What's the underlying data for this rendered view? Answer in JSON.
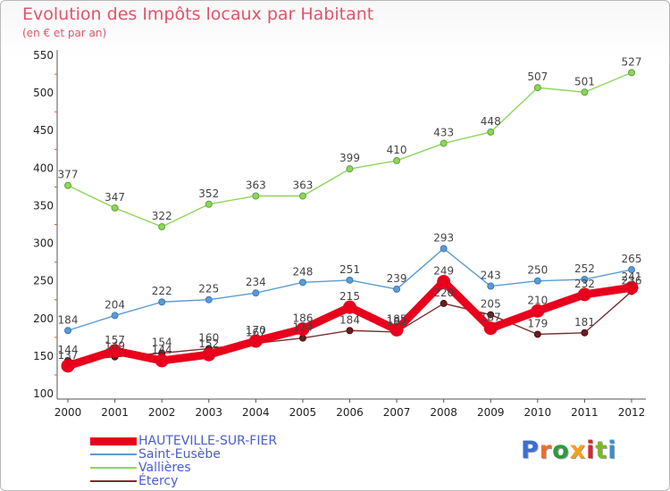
{
  "header": {
    "title": "Evolution des Impôts locaux par Habitant",
    "subtitle": "(en € et par an)"
  },
  "logo": {
    "text": "Proxiti",
    "letter_colors": [
      "#3a6fd0",
      "#e8702a",
      "#2e9a3c",
      "#f2a21c",
      "#d9262e",
      "#7cb62a",
      "#3a8fd0"
    ]
  },
  "chart_data": {
    "type": "line",
    "title": "Evolution des Impôts locaux par Habitant",
    "subtitle": "(en € et par an)",
    "xlabel": "",
    "ylabel": "",
    "x": [
      "2000",
      "2001",
      "2002",
      "2003",
      "2004",
      "2005",
      "2006",
      "2007",
      "2008",
      "2009",
      "2010",
      "2011",
      "2012"
    ],
    "ylim": [
      100,
      550
    ],
    "yticks": [
      100,
      150,
      200,
      250,
      300,
      350,
      400,
      450,
      500,
      550
    ],
    "grid": false,
    "legend": "bottom-left",
    "series": [
      {
        "name": "HAUTEVILLE-SUR-FIER",
        "color": "#e8001c",
        "values": [
          137,
          157,
          144,
          152,
          170,
          186,
          215,
          185,
          249,
          187,
          210,
          232,
          241
        ]
      },
      {
        "name": "Saint-Eusèbe",
        "color": "#5b9bd5",
        "values": [
          184,
          204,
          222,
          225,
          234,
          248,
          251,
          239,
          293,
          243,
          250,
          252,
          265
        ]
      },
      {
        "name": "Vallières",
        "color": "#8ed55a",
        "values": [
          377,
          347,
          322,
          352,
          363,
          363,
          399,
          410,
          433,
          448,
          507,
          501,
          527
        ]
      },
      {
        "name": "Étercy",
        "color": "#7a2e2e",
        "values": [
          144,
          149,
          154,
          160,
          167,
          174,
          184,
          182,
          220,
          205,
          179,
          181,
          236
        ]
      }
    ]
  }
}
